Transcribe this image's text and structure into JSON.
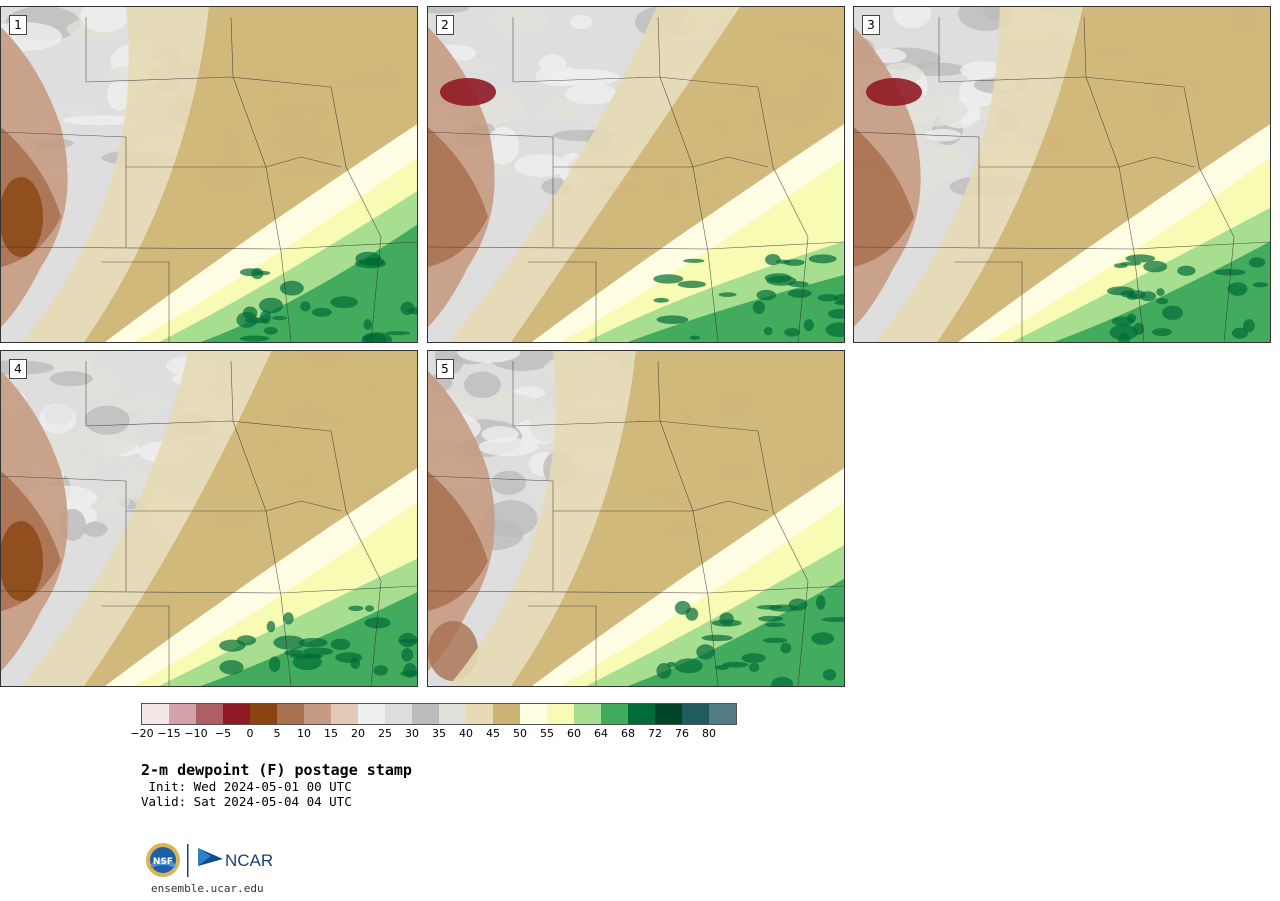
{
  "panels": [
    {
      "label": "1",
      "warm_band": 0.3,
      "moist_band": 0.55,
      "dry_patch": "west"
    },
    {
      "label": "2",
      "warm_band": 0.55,
      "moist_band": 0.7,
      "dry_patch": "northwest"
    },
    {
      "label": "3",
      "warm_band": 0.35,
      "moist_band": 0.6,
      "dry_patch": "northwest"
    },
    {
      "label": "4",
      "warm_band": 0.45,
      "moist_band": 0.62,
      "dry_patch": "west"
    },
    {
      "label": "5",
      "warm_band": 0.3,
      "moist_band": 0.58,
      "dry_patch": "southwest"
    }
  ],
  "colorbar": {
    "colors": [
      "#f3e7e8",
      "#d4a1a8",
      "#b05e66",
      "#8f1a24",
      "#8a4412",
      "#a8704f",
      "#c79b83",
      "#e2c8b7",
      "#efefef",
      "#dedede",
      "#bcbcbc",
      "#e1e1d9",
      "#e7dab4",
      "#ceb474",
      "#fffde4",
      "#f8fbb4",
      "#a8de90",
      "#42ab5d",
      "#006c37",
      "#00442a",
      "#1e5c5e",
      "#537d85"
    ],
    "ticks": [
      "−20",
      "−15",
      "−10",
      "−5",
      "0",
      "5",
      "10",
      "15",
      "20",
      "25",
      "30",
      "35",
      "40",
      "45",
      "50",
      "55",
      "60",
      "64",
      "68",
      "72",
      "76",
      "80"
    ]
  },
  "title": "2-m dewpoint (F) postage stamp",
  "init": " Init: Wed 2024-05-01 00 UTC",
  "valid": "Valid: Sat 2024-05-04 04 UTC",
  "logos": {
    "nsf": "NSF",
    "ncar": "NCAR"
  },
  "website": "ensemble.ucar.edu"
}
